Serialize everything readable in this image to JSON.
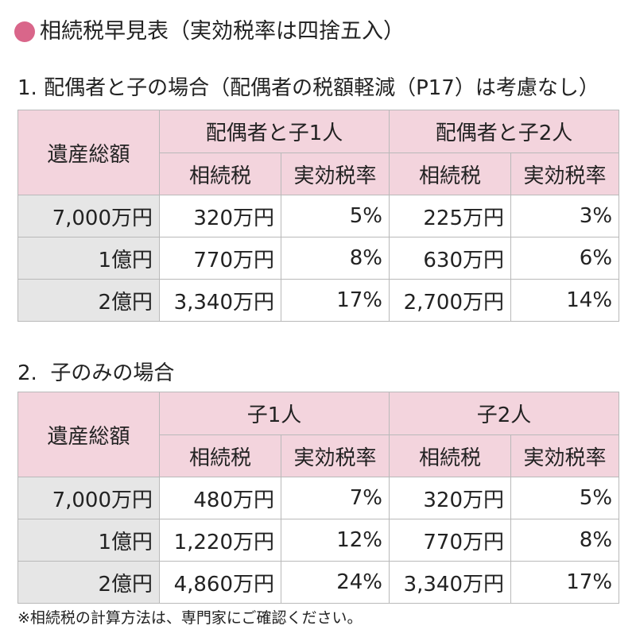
{
  "title": "相続税早見表（実効税率は四捨五入）",
  "colors": {
    "dot": "#d9668a",
    "header_bg": "#f3d4dd",
    "row_label_bg": "#e6e6e6"
  },
  "table1": {
    "heading": "1. 配偶者と子の場合（配偶者の税額軽減（P17）は考慮なし）",
    "row_header": "遺産総額",
    "groups": [
      "配偶者と子1人",
      "配偶者と子2人"
    ],
    "subheaders": [
      "相続税",
      "実効税率",
      "相続税",
      "実効税率"
    ],
    "rows": [
      {
        "label": "7,000万円",
        "cells": [
          "320万円",
          "5%",
          "225万円",
          "3%"
        ]
      },
      {
        "label": "1億円",
        "cells": [
          "770万円",
          "8%",
          "630万円",
          "6%"
        ]
      },
      {
        "label": "2億円",
        "cells": [
          "3,340万円",
          "17%",
          "2,700万円",
          "14%"
        ]
      }
    ]
  },
  "table2": {
    "heading": "2.  子のみの場合",
    "row_header": "遺産総額",
    "groups": [
      "子1人",
      "子2人"
    ],
    "subheaders": [
      "相続税",
      "実効税率",
      "相続税",
      "実効税率"
    ],
    "rows": [
      {
        "label": "7,000万円",
        "cells": [
          "480万円",
          "7%",
          "320万円",
          "5%"
        ]
      },
      {
        "label": "1億円",
        "cells": [
          "1,220万円",
          "12%",
          "770万円",
          "8%"
        ]
      },
      {
        "label": "2億円",
        "cells": [
          "4,860万円",
          "24%",
          "3,340万円",
          "17%"
        ]
      }
    ]
  },
  "note": "※相続税の計算方法は、専門家にご確認ください。"
}
